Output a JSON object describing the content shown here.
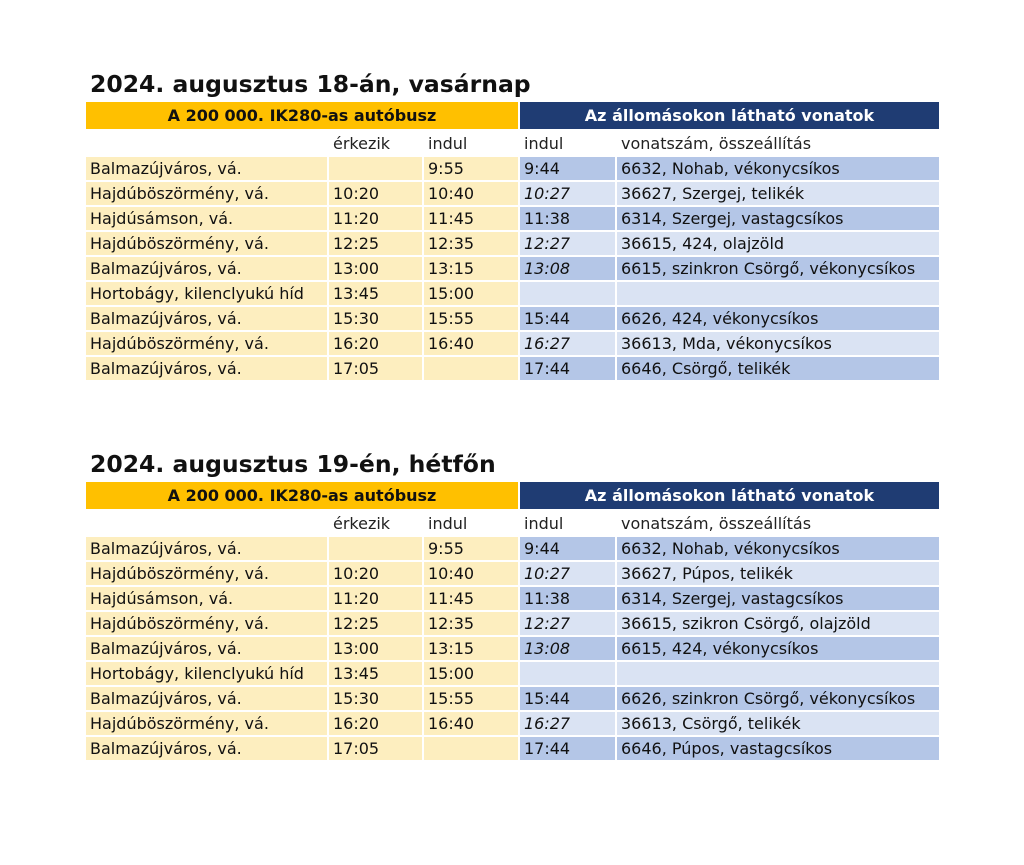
{
  "tables": [
    {
      "title": "2024. augusztus 18-án, vasárnap",
      "header_left": "A 200 000. IK280-as autóbusz",
      "header_right": "Az állomásokon látható vonatok",
      "sub": {
        "arrive": "érkezik",
        "depart": "indul",
        "train_depart": "indul",
        "train_info": "vonatszám, összeállítás"
      },
      "rows": [
        {
          "station": "Balmazújváros, vá.",
          "arrive": "",
          "depart": "9:55",
          "train_time": "9:44",
          "train_italic": false,
          "train": "6632, Nohab, vékonycsíkos",
          "shade": "dark"
        },
        {
          "station": "Hajdúböszörmény, vá.",
          "arrive": "10:20",
          "depart": "10:40",
          "train_time": "10:27",
          "train_italic": true,
          "train": "36627, Szergej, telikék",
          "shade": "light"
        },
        {
          "station": "Hajdúsámson, vá.",
          "arrive": "11:20",
          "depart": "11:45",
          "train_time": "11:38",
          "train_italic": false,
          "train": "6314, Szergej, vastagcsíkos",
          "shade": "dark"
        },
        {
          "station": "Hajdúböszörmény, vá.",
          "arrive": "12:25",
          "depart": "12:35",
          "train_time": "12:27",
          "train_italic": true,
          "train": "36615, 424, olajzöld",
          "shade": "light"
        },
        {
          "station": "Balmazújváros, vá.",
          "arrive": "13:00",
          "depart": "13:15",
          "train_time": "13:08",
          "train_italic": true,
          "train": "6615, szinkron Csörgő, vékonycsíkos",
          "shade": "dark"
        },
        {
          "station": "Hortobágy, kilenclyukú híd",
          "arrive": "13:45",
          "depart": "15:00",
          "train_time": "",
          "train_italic": false,
          "train": "",
          "shade": "light"
        },
        {
          "station": "Balmazújváros, vá.",
          "arrive": "15:30",
          "depart": "15:55",
          "train_time": "15:44",
          "train_italic": false,
          "train": "6626, 424, vékonycsíkos",
          "shade": "dark"
        },
        {
          "station": "Hajdúböszörmény, vá.",
          "arrive": "16:20",
          "depart": "16:40",
          "train_time": "16:27",
          "train_italic": true,
          "train": "36613, Mda, vékonycsíkos",
          "shade": "light"
        },
        {
          "station": "Balmazújváros, vá.",
          "arrive": "17:05",
          "depart": "",
          "train_time": "17:44",
          "train_italic": false,
          "train": "6646, Csörgő, telikék",
          "shade": "dark"
        }
      ]
    },
    {
      "title": "2024. augusztus 19-én, hétfőn",
      "header_left": "A 200 000. IK280-as autóbusz",
      "header_right": "Az állomásokon látható vonatok",
      "sub": {
        "arrive": "érkezik",
        "depart": "indul",
        "train_depart": "indul",
        "train_info": "vonatszám, összeállítás"
      },
      "rows": [
        {
          "station": "Balmazújváros, vá.",
          "arrive": "",
          "depart": "9:55",
          "train_time": "9:44",
          "train_italic": false,
          "train": "6632, Nohab, vékonycsíkos",
          "shade": "dark"
        },
        {
          "station": "Hajdúböszörmény, vá.",
          "arrive": "10:20",
          "depart": "10:40",
          "train_time": "10:27",
          "train_italic": true,
          "train": "36627, Púpos, telikék",
          "shade": "light"
        },
        {
          "station": "Hajdúsámson, vá.",
          "arrive": "11:20",
          "depart": "11:45",
          "train_time": "11:38",
          "train_italic": false,
          "train": "6314, Szergej, vastagcsíkos",
          "shade": "dark"
        },
        {
          "station": "Hajdúböszörmény, vá.",
          "arrive": "12:25",
          "depart": "12:35",
          "train_time": "12:27",
          "train_italic": true,
          "train": "36615, szikron Csörgő, olajzöld",
          "shade": "light"
        },
        {
          "station": "Balmazújváros, vá.",
          "arrive": "13:00",
          "depart": "13:15",
          "train_time": "13:08",
          "train_italic": true,
          "train": "6615, 424, vékonycsíkos",
          "shade": "dark"
        },
        {
          "station": "Hortobágy, kilenclyukú híd",
          "arrive": "13:45",
          "depart": "15:00",
          "train_time": "",
          "train_italic": false,
          "train": "",
          "shade": "light"
        },
        {
          "station": "Balmazújváros, vá.",
          "arrive": "15:30",
          "depart": "15:55",
          "train_time": "15:44",
          "train_italic": false,
          "train": "6626, szinkron Csörgő, vékonycsíkos",
          "shade": "dark"
        },
        {
          "station": "Hajdúböszörmény, vá.",
          "arrive": "16:20",
          "depart": "16:40",
          "train_time": "16:27",
          "train_italic": true,
          "train": "36613, Csörgő, telikék",
          "shade": "light"
        },
        {
          "station": "Balmazújváros, vá.",
          "arrive": "17:05",
          "depart": "",
          "train_time": "17:44",
          "train_italic": false,
          "train": "6646, Púpos, vastagcsíkos",
          "shade": "dark"
        }
      ]
    }
  ]
}
